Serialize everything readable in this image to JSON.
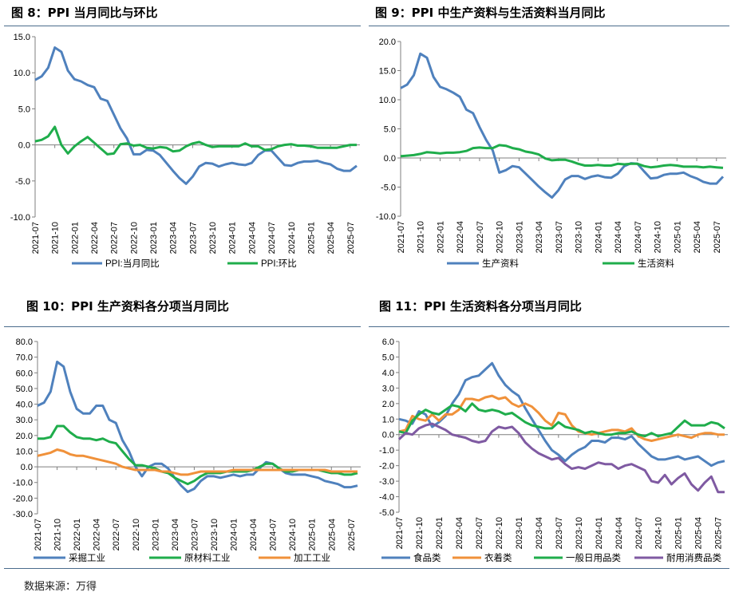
{
  "source": "数据来源：万得",
  "x_ticks": [
    "2021-07",
    "2021-10",
    "2022-01",
    "2022-04",
    "2022-07",
    "2022-10",
    "2023-01",
    "2023-04",
    "2023-07",
    "2023-10",
    "2024-01",
    "2024-04",
    "2024-07",
    "2024-10",
    "2025-01",
    "2025-04",
    "2025-07"
  ],
  "chart_data": [
    {
      "type": "line",
      "title": "图 8：PPI 当月同比与环比",
      "ylim": [
        -10,
        15
      ],
      "yticks": [
        "15.0",
        "10.0",
        "5.0",
        "0.0",
        "-5.0",
        "-10.0"
      ],
      "yticks_num": [
        15,
        10,
        5,
        0,
        -5,
        -10
      ],
      "start": "2021-07",
      "series": [
        {
          "name": "PPI:当月同比",
          "color": "#4f81bd",
          "values": [
            9.0,
            9.5,
            10.7,
            13.5,
            12.9,
            10.3,
            9.1,
            8.8,
            8.3,
            8.0,
            6.4,
            6.1,
            4.2,
            2.3,
            0.9,
            -1.3,
            -1.3,
            -0.7,
            -0.8,
            -1.4,
            -2.5,
            -3.6,
            -4.6,
            -5.4,
            -4.4,
            -3.0,
            -2.5,
            -2.6,
            -3.0,
            -2.7,
            -2.5,
            -2.7,
            -2.8,
            -2.5,
            -1.4,
            -0.8,
            -0.8,
            -1.8,
            -2.8,
            -2.9,
            -2.5,
            -2.3,
            -2.3,
            -2.2,
            -2.5,
            -2.7,
            -3.3,
            -3.6,
            -3.6,
            -2.9
          ]
        },
        {
          "name": "PPI:环比",
          "color": "#1fad4b",
          "values": [
            0.5,
            0.7,
            1.2,
            2.5,
            0.0,
            -1.2,
            -0.2,
            0.5,
            1.1,
            0.3,
            -0.5,
            -1.3,
            -1.2,
            0.1,
            0.2,
            -0.1,
            0.0,
            -0.4,
            -0.5,
            -0.3,
            -0.4,
            -0.9,
            -0.8,
            -0.2,
            0.2,
            0.4,
            0.0,
            -0.3,
            -0.2,
            -0.2,
            -0.2,
            -0.2,
            0.2,
            -0.2,
            -0.2,
            -0.7,
            -0.6,
            -0.2,
            0.0,
            0.1,
            -0.1,
            -0.1,
            -0.2,
            -0.4,
            -0.4,
            -0.4,
            -0.4,
            -0.2,
            0.0,
            0.0
          ]
        }
      ]
    },
    {
      "type": "line",
      "title": "图 9：PPI 中生产资料与生活资料当月同比",
      "ylim": [
        -10,
        20
      ],
      "yticks": [
        "20.0",
        "15.0",
        "10.0",
        "5.0",
        "0.0",
        "-5.0",
        "-10.0"
      ],
      "yticks_num": [
        20,
        15,
        10,
        5,
        0,
        -5,
        -10
      ],
      "start": "2021-07",
      "series": [
        {
          "name": "生产资料",
          "color": "#4f81bd",
          "values": [
            12.0,
            12.6,
            14.2,
            17.9,
            17.2,
            13.9,
            12.2,
            11.8,
            11.2,
            10.5,
            8.3,
            7.7,
            5.3,
            3.1,
            1.3,
            -2.5,
            -2.1,
            -1.4,
            -1.6,
            -2.7,
            -3.8,
            -4.9,
            -5.9,
            -6.8,
            -5.5,
            -3.7,
            -3.1,
            -3.1,
            -3.6,
            -3.2,
            -3.0,
            -3.3,
            -3.4,
            -2.7,
            -1.4,
            -0.9,
            -1.0,
            -2.3,
            -3.5,
            -3.4,
            -2.9,
            -2.7,
            -2.7,
            -2.5,
            -3.1,
            -3.5,
            -4.1,
            -4.4,
            -4.4,
            -3.2
          ]
        },
        {
          "name": "生活资料",
          "color": "#1fad4b",
          "values": [
            0.3,
            0.4,
            0.5,
            0.7,
            1.0,
            0.9,
            0.8,
            0.9,
            0.9,
            1.0,
            1.2,
            1.7,
            1.8,
            1.7,
            1.7,
            2.2,
            2.1,
            1.7,
            1.5,
            1.1,
            0.9,
            0.6,
            -0.1,
            -0.4,
            -0.3,
            -0.3,
            -0.6,
            -1.0,
            -1.3,
            -1.3,
            -1.2,
            -1.3,
            -1.3,
            -1.0,
            -1.1,
            -1.0,
            -1.0,
            -1.4,
            -1.6,
            -1.5,
            -1.3,
            -1.2,
            -1.3,
            -1.5,
            -1.5,
            -1.5,
            -1.6,
            -1.5,
            -1.6,
            -1.7
          ]
        }
      ]
    },
    {
      "type": "line",
      "title": "图 10：PPI 生产资料各分项当月同比",
      "ylim": [
        -30,
        80
      ],
      "yticks": [
        "80.0",
        "70.0",
        "60.0",
        "50.0",
        "40.0",
        "30.0",
        "20.0",
        "10.0",
        "0.0",
        "-10.0",
        "-20.0",
        "-30.0"
      ],
      "yticks_num": [
        80,
        70,
        60,
        50,
        40,
        30,
        20,
        10,
        0,
        -10,
        -20,
        -30
      ],
      "start": "2021-07",
      "series": [
        {
          "name": "采掘工业",
          "color": "#4f81bd",
          "values": [
            39,
            41,
            48,
            67,
            64,
            48,
            37,
            34,
            34,
            39,
            39,
            30,
            28,
            17,
            10,
            0,
            -6,
            0,
            2,
            2,
            -1,
            -7,
            -12,
            -16,
            -14,
            -9,
            -6,
            -6,
            -7,
            -6,
            -5,
            -6,
            -5,
            -5,
            -1,
            3,
            2,
            -1,
            -4,
            -5,
            -5,
            -5,
            -6,
            -7,
            -9,
            -10,
            -11,
            -13,
            -13,
            -12
          ]
        },
        {
          "name": "原材料工业",
          "color": "#1fad4b",
          "values": [
            18,
            18,
            19,
            26,
            26,
            22,
            19,
            18,
            18,
            17,
            18,
            16,
            15,
            10,
            5,
            1,
            1,
            0,
            -1,
            -3,
            -4,
            -7,
            -9,
            -11,
            -9,
            -6,
            -4,
            -4,
            -4,
            -3,
            -3,
            -3,
            -3,
            -2,
            0,
            2,
            2,
            -1,
            -3,
            -3,
            -2,
            -2,
            -2,
            -2,
            -3,
            -4,
            -4,
            -5,
            -5,
            -4
          ]
        },
        {
          "name": "加工工业",
          "color": "#f0913a",
          "values": [
            7,
            8,
            9,
            11,
            10,
            8,
            7,
            7,
            6,
            5,
            4,
            3,
            2,
            0,
            -1,
            -2,
            -2,
            -2,
            -2,
            -3,
            -3,
            -4,
            -5,
            -5,
            -4,
            -3,
            -3,
            -3,
            -3,
            -3,
            -2,
            -2,
            -2,
            -2,
            -2,
            -2,
            -2,
            -2,
            -2,
            -2,
            -2,
            -2,
            -2,
            -2,
            -2,
            -3,
            -3,
            -3,
            -3,
            -3
          ]
        }
      ]
    },
    {
      "type": "line",
      "title": "图 11：PPI 生活资料各分项当月同比",
      "ylim": [
        -5,
        6
      ],
      "yticks": [
        "6.0",
        "5.0",
        "4.0",
        "3.0",
        "2.0",
        "1.0",
        "0.0",
        "-1.0",
        "-2.0",
        "-3.0",
        "-4.0",
        "-5.0"
      ],
      "yticks_num": [
        6,
        5,
        4,
        3,
        2,
        1,
        0,
        -1,
        -2,
        -3,
        -4,
        -5
      ],
      "start": "2021-07",
      "series": [
        {
          "name": "食品类",
          "color": "#4f81bd",
          "values": [
            1.0,
            0.9,
            0.7,
            1.5,
            1.3,
            0.5,
            0.8,
            1.2,
            2.0,
            2.6,
            3.5,
            3.7,
            3.8,
            4.2,
            4.6,
            3.8,
            3.2,
            2.8,
            2.5,
            1.7,
            1.0,
            0.3,
            -0.4,
            -1.0,
            -1.3,
            -1.7,
            -1.3,
            -1.0,
            -0.8,
            -0.4,
            -0.4,
            -0.5,
            -0.2,
            -0.2,
            -0.3,
            -0.1,
            -0.6,
            -1.0,
            -1.4,
            -1.6,
            -1.6,
            -1.5,
            -1.4,
            -1.6,
            -1.5,
            -1.4,
            -1.7,
            -2.0,
            -1.8,
            -1.7
          ]
        },
        {
          "name": "衣着类",
          "color": "#f0913a",
          "values": [
            0.2,
            0.3,
            1.2,
            1.0,
            0.9,
            1.3,
            0.9,
            1.3,
            1.3,
            1.6,
            2.3,
            2.3,
            2.2,
            2.4,
            2.5,
            2.3,
            2.4,
            2.0,
            1.8,
            2.0,
            1.8,
            1.4,
            0.9,
            0.6,
            1.4,
            1.3,
            0.6,
            0.2,
            0.1,
            0.0,
            0.1,
            0.2,
            0.3,
            0.3,
            0.2,
            0.4,
            -0.1,
            -0.3,
            -0.4,
            -0.3,
            -0.2,
            -0.1,
            0.0,
            -0.1,
            -0.2,
            0.0,
            0.1,
            0.1,
            0.0,
            0.0
          ]
        },
        {
          "name": "一般日用品类",
          "color": "#1fad4b",
          "values": [
            0.2,
            0.1,
            0.9,
            1.3,
            1.6,
            1.4,
            1.3,
            1.6,
            1.9,
            1.8,
            1.5,
            2.0,
            1.6,
            1.5,
            1.6,
            1.5,
            1.3,
            1.4,
            1.1,
            0.8,
            0.6,
            0.5,
            0.4,
            0.4,
            0.8,
            0.5,
            0.4,
            0.3,
            0.1,
            0.2,
            0.1,
            0.0,
            0.0,
            0.1,
            0.1,
            0.2,
            0.0,
            -0.1,
            0.1,
            -0.1,
            0.0,
            0.1,
            0.5,
            0.9,
            0.6,
            0.6,
            0.6,
            0.8,
            0.7,
            0.4
          ]
        },
        {
          "name": "耐用消费品类",
          "color": "#7f5aa2",
          "values": [
            -0.3,
            0.1,
            0.0,
            0.4,
            0.6,
            0.7,
            0.5,
            0.3,
            0.0,
            -0.1,
            -0.2,
            -0.4,
            -0.5,
            -0.4,
            0.2,
            0.5,
            0.4,
            0.5,
            0.1,
            -0.5,
            -0.9,
            -1.2,
            -1.4,
            -1.6,
            -1.5,
            -1.9,
            -2.2,
            -2.1,
            -2.2,
            -2.0,
            -1.8,
            -1.9,
            -1.9,
            -2.2,
            -2.0,
            -1.9,
            -2.1,
            -2.3,
            -3.0,
            -3.1,
            -2.6,
            -3.2,
            -2.8,
            -2.5,
            -3.2,
            -3.6,
            -3.1,
            -2.7,
            -3.7,
            -3.7
          ]
        }
      ]
    }
  ]
}
